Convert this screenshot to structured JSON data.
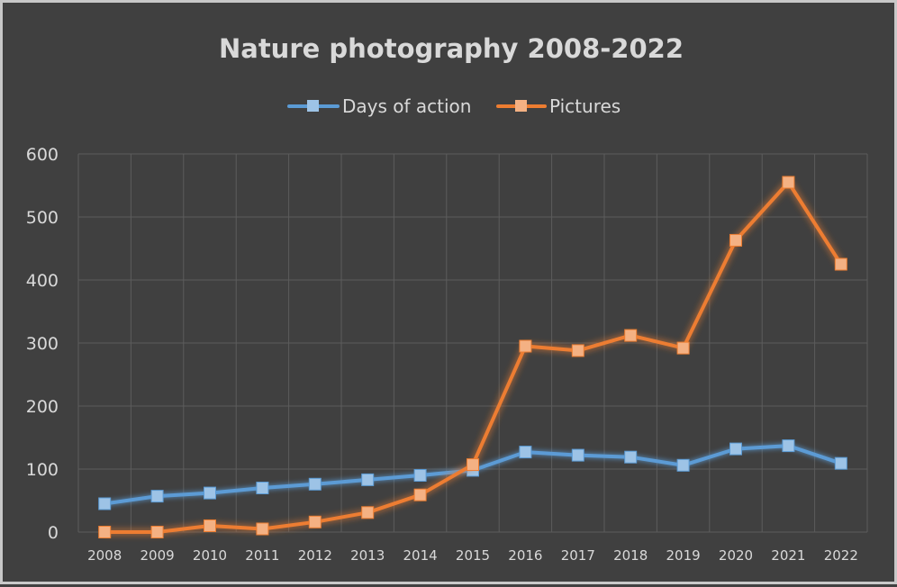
{
  "chart_data": {
    "type": "line",
    "title": "Nature photography 2008-2022",
    "xlabel": "",
    "ylabel": "",
    "ylim": [
      0,
      600
    ],
    "yticks": [
      0,
      100,
      200,
      300,
      400,
      500,
      600
    ],
    "grid": true,
    "legend_position": "top",
    "categories": [
      "2008",
      "2009",
      "2010",
      "2011",
      "2012",
      "2013",
      "2014",
      "2015",
      "2016",
      "2017",
      "2018",
      "2019",
      "2020",
      "2021",
      "2022"
    ],
    "series": [
      {
        "name": "Days of action",
        "color": "#5b9bd5",
        "marker_color": "#9dc3e6",
        "values": [
          45,
          57,
          62,
          70,
          76,
          83,
          90,
          98,
          127,
          122,
          119,
          106,
          132,
          137,
          109
        ]
      },
      {
        "name": "Pictures",
        "color": "#ed7d31",
        "marker_color": "#f4b183",
        "values": [
          0,
          0,
          10,
          5,
          16,
          31,
          59,
          107,
          295,
          288,
          312,
          292,
          463,
          555,
          425
        ]
      }
    ]
  }
}
